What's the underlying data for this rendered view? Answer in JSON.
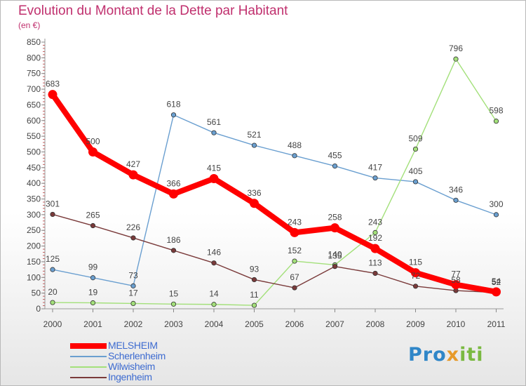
{
  "title": "Evolution du Montant de la Dette par Habitant",
  "subtitle": "(en €)",
  "logo_text": "Proxiti",
  "chart_data": {
    "type": "line",
    "title": "Evolution du Montant de la Dette par Habitant",
    "subtitle": "(en €)",
    "x": [
      "2000",
      "2001",
      "2002",
      "2003",
      "2004",
      "2005",
      "2006",
      "2007",
      "2008",
      "2009",
      "2010",
      "2011"
    ],
    "yticks": [
      0,
      50,
      100,
      150,
      200,
      250,
      300,
      350,
      400,
      450,
      500,
      550,
      600,
      650,
      700,
      750,
      800,
      850
    ],
    "ylim": [
      0,
      850
    ],
    "grid": false,
    "legend_position": "bottom-left",
    "series": [
      {
        "name": "MELSHEIM",
        "color": "#ff0000",
        "values": [
          683,
          500,
          427,
          366,
          415,
          336,
          243,
          258,
          192,
          115,
          77,
          54
        ],
        "labels": [
          "683",
          "500",
          "427",
          "366",
          "415",
          "336",
          "243",
          "258",
          "192",
          "115",
          "77",
          "54"
        ]
      },
      {
        "name": "Scherlenheim",
        "color": "#6a9fd0",
        "values": [
          125,
          99,
          73,
          618,
          561,
          521,
          488,
          455,
          417,
          405,
          346,
          300
        ],
        "labels": [
          "125",
          "99",
          "73",
          "618",
          "561",
          "521",
          "488",
          "455",
          "417",
          "405",
          "346",
          "300"
        ]
      },
      {
        "name": "Wilwisheim",
        "color": "#a3e07a",
        "values": [
          20,
          19,
          17,
          15,
          14,
          11,
          152,
          140,
          243,
          509,
          796,
          598
        ],
        "labels": [
          "20",
          "19",
          "17",
          "15",
          "14",
          "11",
          "152",
          "140",
          "243",
          "509",
          "796",
          "598"
        ]
      },
      {
        "name": "Ingenheim",
        "color": "#7a3a3a",
        "values": [
          301,
          265,
          226,
          186,
          146,
          93,
          67,
          135,
          113,
          72,
          58,
          52
        ],
        "labels": [
          "301",
          "265",
          "226",
          "186",
          "146",
          "93",
          "67",
          "135",
          "113",
          "72",
          "58",
          "52"
        ]
      }
    ]
  }
}
